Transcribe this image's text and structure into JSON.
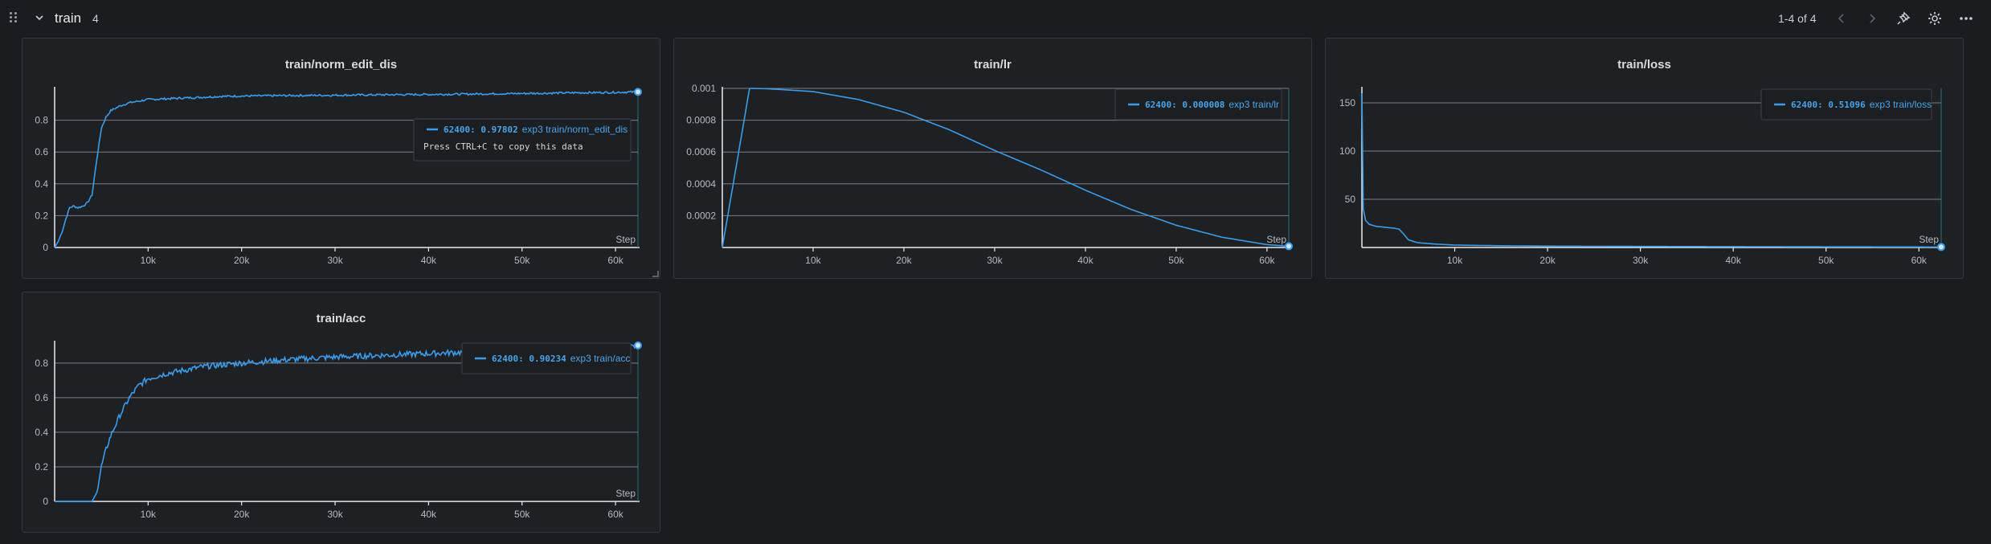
{
  "header": {
    "title": "train",
    "count": "4",
    "pager": "1-4 of 4"
  },
  "icons": [
    "drag-handle-icon",
    "chevron-down-icon",
    "chevron-left-icon",
    "chevron-right-icon",
    "pin-icon",
    "gear-icon",
    "more-icon"
  ],
  "colors": {
    "line": "#3d9be9",
    "background": "#1a1c1f",
    "panel": "#1e2124"
  },
  "panels": [
    {
      "title": "train/norm_edit_dis",
      "tooltip_value": "62400: 0.97802",
      "tooltip_name": "exp3 train/norm_edit_dis",
      "tooltip_hint": "Press CTRL+C to copy this data",
      "step_label": "Step"
    },
    {
      "title": "train/lr",
      "tooltip_value": "62400: 0.000008",
      "tooltip_name": "exp3 train/lr",
      "step_label": "Step"
    },
    {
      "title": "train/loss",
      "tooltip_value": "62400: 0.51096",
      "tooltip_name": "exp3 train/loss",
      "step_label": "Step"
    },
    {
      "title": "train/acc",
      "tooltip_value": "62400: 0.90234",
      "tooltip_name": "exp3 train/acc",
      "step_label": "Step"
    }
  ],
  "chart_data": [
    {
      "type": "line",
      "title": "train/norm_edit_dis",
      "xlabel": "Step",
      "xlim": [
        0,
        62400
      ],
      "ylim": [
        0,
        1
      ],
      "xticks": [
        "10k",
        "20k",
        "30k",
        "40k",
        "50k",
        "60k"
      ],
      "yticks": [
        "0",
        "0.2",
        "0.4",
        "0.6",
        "0.8"
      ],
      "series": [
        {
          "name": "exp3 train/norm_edit_dis",
          "x": [
            0,
            400,
            800,
            1200,
            1600,
            2000,
            2500,
            3000,
            3500,
            4000,
            4500,
            5000,
            5500,
            6000,
            7000,
            8000,
            9000,
            10000,
            12000,
            14000,
            16000,
            18000,
            20000,
            25000,
            30000,
            35000,
            40000,
            45000,
            50000,
            55000,
            60000,
            62400
          ],
          "y": [
            0,
            0.04,
            0.1,
            0.18,
            0.25,
            0.26,
            0.25,
            0.26,
            0.28,
            0.33,
            0.55,
            0.75,
            0.82,
            0.86,
            0.89,
            0.91,
            0.92,
            0.93,
            0.935,
            0.94,
            0.945,
            0.95,
            0.952,
            0.955,
            0.957,
            0.96,
            0.962,
            0.965,
            0.968,
            0.972,
            0.975,
            0.978
          ]
        }
      ]
    },
    {
      "type": "line",
      "title": "train/lr",
      "xlabel": "Step",
      "xlim": [
        0,
        62400
      ],
      "ylim": [
        0,
        0.001
      ],
      "xticks": [
        "10k",
        "20k",
        "30k",
        "40k",
        "50k",
        "60k"
      ],
      "yticks": [
        "0.0002",
        "0.0004",
        "0.0006",
        "0.0008",
        "0.001"
      ],
      "series": [
        {
          "name": "exp3 train/lr",
          "x": [
            0,
            3000,
            5000,
            10000,
            15000,
            20000,
            25000,
            30000,
            35000,
            40000,
            45000,
            50000,
            55000,
            60000,
            62400
          ],
          "y": [
            0,
            0.001,
            0.000998,
            0.00098,
            0.00093,
            0.00085,
            0.00074,
            0.00061,
            0.00049,
            0.00036,
            0.00024,
            0.00014,
            6.5e-05,
            1.8e-05,
            8e-06
          ]
        }
      ]
    },
    {
      "type": "line",
      "title": "train/loss",
      "xlabel": "Step",
      "xlim": [
        0,
        62400
      ],
      "ylim": [
        0,
        165
      ],
      "xticks": [
        "10k",
        "20k",
        "30k",
        "40k",
        "50k",
        "60k"
      ],
      "yticks": [
        "50",
        "100",
        "150"
      ],
      "series": [
        {
          "name": "exp3 train/loss",
          "x": [
            0,
            150,
            400,
            800,
            1500,
            2500,
            3500,
            4000,
            4500,
            5000,
            6000,
            8000,
            10000,
            15000,
            20000,
            30000,
            40000,
            50000,
            60000,
            62400
          ],
          "y": [
            160,
            40,
            28,
            24,
            22,
            21,
            20,
            19,
            14,
            8,
            5,
            3.5,
            2.5,
            1.8,
            1.4,
            1.1,
            0.9,
            0.7,
            0.55,
            0.51
          ]
        }
      ]
    },
    {
      "type": "line",
      "title": "train/acc",
      "xlabel": "Step",
      "xlim": [
        0,
        62400
      ],
      "ylim": [
        0,
        0.92
      ],
      "xticks": [
        "10k",
        "20k",
        "30k",
        "40k",
        "50k",
        "60k"
      ],
      "yticks": [
        "0",
        "0.2",
        "0.4",
        "0.6",
        "0.8"
      ],
      "series": [
        {
          "name": "exp3 train/acc",
          "x": [
            0,
            4000,
            4500,
            5000,
            5500,
            6000,
            7000,
            8000,
            9000,
            10000,
            12000,
            14000,
            16000,
            18000,
            20000,
            25000,
            30000,
            35000,
            40000,
            45000,
            50000,
            55000,
            60000,
            62400
          ],
          "y": [
            0,
            0,
            0.05,
            0.2,
            0.3,
            0.38,
            0.5,
            0.6,
            0.67,
            0.71,
            0.74,
            0.76,
            0.78,
            0.79,
            0.8,
            0.82,
            0.835,
            0.845,
            0.855,
            0.865,
            0.87,
            0.875,
            0.88,
            0.902
          ]
        }
      ]
    }
  ]
}
